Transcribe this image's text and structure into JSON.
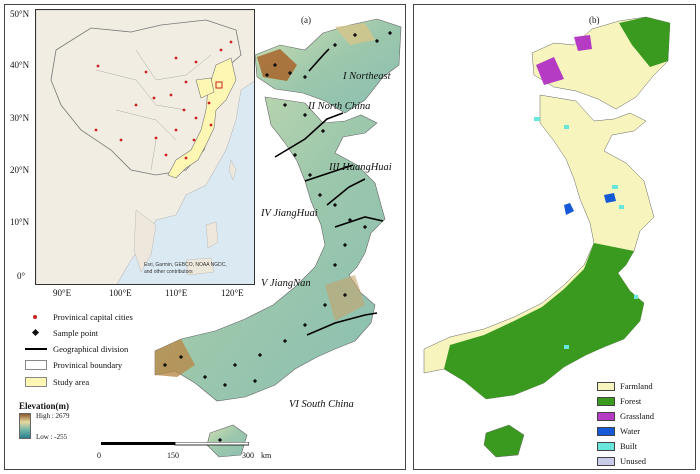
{
  "panel_a": {
    "label": "(a)",
    "inset": {
      "lat_labels": [
        "50°N",
        "40°N",
        "30°N",
        "20°N",
        "10°N",
        "0°"
      ],
      "lon_labels": [
        "90°E",
        "100°E",
        "110°E",
        "120°E"
      ],
      "credits": [
        "Esri, Garmin, GEBCO, NOAA NGDC,",
        "and other contributors"
      ]
    },
    "regions": [
      "I  Northeast",
      "II  North China",
      "III  HuangHuai",
      "IV  JiangHuai",
      "V  JiangNan",
      "VI  South China"
    ],
    "legend": [
      {
        "symbol": "red-dot-icon",
        "label": "Provinical capital cities"
      },
      {
        "symbol": "black-diamond-icon",
        "label": "Sample point"
      },
      {
        "symbol": "black-line-icon",
        "label": "Geographical division"
      },
      {
        "symbol": "white-box-icon",
        "label": "Provinical boundary"
      },
      {
        "symbol": "yellow-box-icon",
        "label": "Study area"
      }
    ],
    "elevation": {
      "title": "Elevation(m)",
      "high": "High : 2679",
      "low": "Low : -255"
    },
    "scale": {
      "ticks": [
        "0",
        "150",
        "300"
      ],
      "unit": "km"
    },
    "colors": {
      "study_area": "#fdf7b3",
      "capital": "#cc2222",
      "ocean": "#dbe9f3",
      "land": "#f0ede4"
    }
  },
  "panel_b": {
    "label": "(b)",
    "legend": [
      {
        "label": "Farmland",
        "color": "#f7f5bd"
      },
      {
        "label": "Forest",
        "color": "#3a9a1f"
      },
      {
        "label": "Grassland",
        "color": "#b53bc4"
      },
      {
        "label": "Water",
        "color": "#1559d6"
      },
      {
        "label": "Built",
        "color": "#69e6dc"
      },
      {
        "label": "Unused",
        "color": "#c8cce8"
      }
    ]
  }
}
